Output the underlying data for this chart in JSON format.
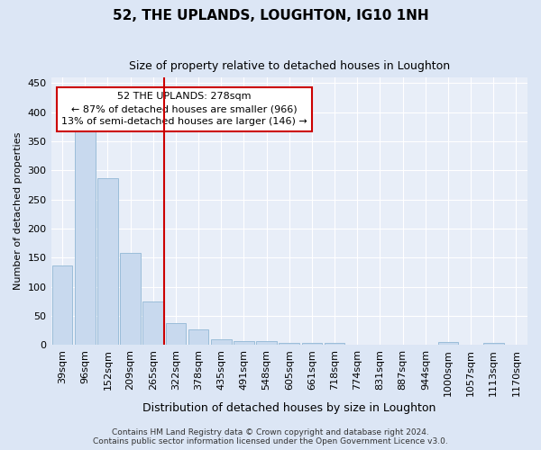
{
  "title": "52, THE UPLANDS, LOUGHTON, IG10 1NH",
  "subtitle": "Size of property relative to detached houses in Loughton",
  "xlabel": "Distribution of detached houses by size in Loughton",
  "ylabel": "Number of detached properties",
  "categories": [
    "39sqm",
    "96sqm",
    "152sqm",
    "209sqm",
    "265sqm",
    "322sqm",
    "378sqm",
    "435sqm",
    "491sqm",
    "548sqm",
    "605sqm",
    "661sqm",
    "718sqm",
    "774sqm",
    "831sqm",
    "887sqm",
    "944sqm",
    "1000sqm",
    "1057sqm",
    "1113sqm",
    "1170sqm"
  ],
  "values": [
    136,
    375,
    287,
    158,
    74,
    38,
    27,
    10,
    7,
    6,
    4,
    4,
    4,
    0,
    0,
    0,
    0,
    5,
    0,
    4,
    0
  ],
  "bar_color": "#c8d9ee",
  "bar_edge_color": "#9bbdd9",
  "vline_x": 4.5,
  "vline_color": "#cc0000",
  "annotation_text": "52 THE UPLANDS: 278sqm\n← 87% of detached houses are smaller (966)\n13% of semi-detached houses are larger (146) →",
  "annotation_box_facecolor": "white",
  "annotation_box_edgecolor": "#cc0000",
  "ylim": [
    0,
    460
  ],
  "yticks": [
    0,
    50,
    100,
    150,
    200,
    250,
    300,
    350,
    400,
    450
  ],
  "footer_line1": "Contains HM Land Registry data © Crown copyright and database right 2024.",
  "footer_line2": "Contains public sector information licensed under the Open Government Licence v3.0.",
  "bg_color": "#dce6f5",
  "plot_bg_color": "#e8eef8",
  "grid_color": "white",
  "title_fontsize": 11,
  "subtitle_fontsize": 9,
  "xlabel_fontsize": 9,
  "ylabel_fontsize": 8,
  "tick_fontsize": 8,
  "footer_fontsize": 6.5,
  "annotation_fontsize": 8
}
